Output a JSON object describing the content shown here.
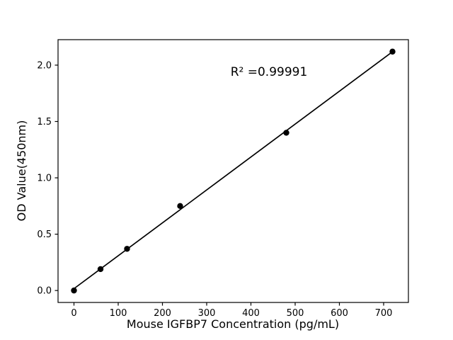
{
  "figure": {
    "background": "#ffffff",
    "foreground": "#000000"
  },
  "chart_data": {
    "type": "scatter",
    "title": "",
    "xlabel": "Mouse IGFBP7 Concentration (pg/mL)",
    "ylabel": "OD Value(450nm)",
    "annotation": "R² =0.99991",
    "r_squared": 0.99991,
    "x": [
      0,
      60,
      120,
      240,
      480,
      720
    ],
    "y": [
      0.0,
      0.19,
      0.37,
      0.75,
      1.4,
      2.12
    ],
    "trendline": "linear",
    "xlim": [
      -36,
      756
    ],
    "ylim": [
      -0.106,
      2.226
    ],
    "xticks": [
      "0",
      "100",
      "200",
      "300",
      "400",
      "500",
      "600",
      "700"
    ],
    "xtick_values": [
      0,
      100,
      200,
      300,
      400,
      500,
      600,
      700
    ],
    "yticks": [
      "0.0",
      "0.5",
      "1.0",
      "1.5",
      "2.0"
    ],
    "ytick_values": [
      0.0,
      0.5,
      1.0,
      1.5,
      2.0
    ],
    "grid": false,
    "legend": "none",
    "marker_color": "#000000",
    "line_color": "#000000"
  }
}
